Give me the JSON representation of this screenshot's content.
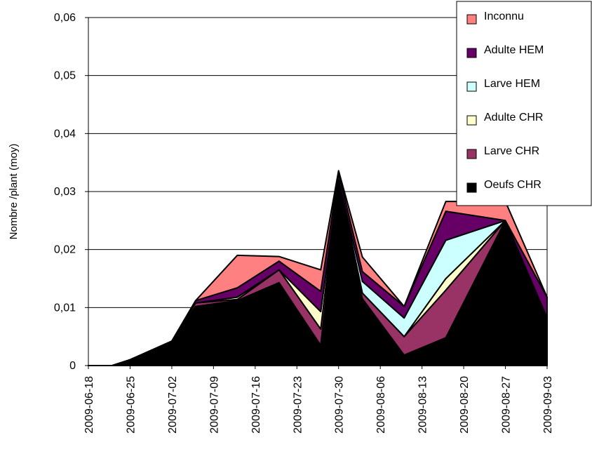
{
  "chart_data": {
    "type": "area",
    "stacked": true,
    "title": "",
    "ylabel": "Nombre /plant (moy)",
    "xlabel": "",
    "ylim": [
      0,
      0.06
    ],
    "yticks": [
      {
        "value": 0,
        "label": "0"
      },
      {
        "value": 0.01,
        "label": "0,01"
      },
      {
        "value": 0.02,
        "label": "0,02"
      },
      {
        "value": 0.03,
        "label": "0,03"
      },
      {
        "value": 0.04,
        "label": "0,04"
      },
      {
        "value": 0.05,
        "label": "0,05"
      },
      {
        "value": 0.06,
        "label": "0,06"
      }
    ],
    "x": [
      "2009-06-18",
      "2009-06-22",
      "2009-06-25",
      "2009-07-02",
      "2009-07-06",
      "2009-07-13",
      "2009-07-20",
      "2009-07-27",
      "2009-07-30",
      "2009-08-03",
      "2009-08-10",
      "2009-08-17",
      "2009-08-27",
      "2009-09-03"
    ],
    "xticks": [
      "2009-06-18",
      "2009-06-25",
      "2009-07-02",
      "2009-07-09",
      "2009-07-16",
      "2009-07-23",
      "2009-07-30",
      "2009-08-06",
      "2009-08-13",
      "2009-08-20",
      "2009-08-27",
      "2009-09-03"
    ],
    "grid": true,
    "legend_position": "top-right",
    "series": [
      {
        "name": "Oeufs CHR",
        "color": "#000000",
        "values": [
          0,
          0,
          0.001,
          0.0042,
          0.0102,
          0.0112,
          0.0143,
          0.0035,
          0.0312,
          0.0115,
          0.0018,
          0.0048,
          0.025,
          0.0082
        ]
      },
      {
        "name": "Larve CHR",
        "color": "#993366",
        "values": [
          0,
          0,
          0,
          0,
          0.0006,
          0.0002,
          0.0022,
          0.0028,
          0.0008,
          0.001,
          0.0032,
          0.0082,
          0,
          0
        ]
      },
      {
        "name": "Adulte CHR",
        "color": "#ffffcc",
        "values": [
          0,
          0,
          0,
          0,
          0,
          0.0004,
          0,
          0.003,
          0,
          0,
          0,
          0.002,
          0,
          0
        ]
      },
      {
        "name": "Larve HEM",
        "color": "#ccffff",
        "values": [
          0,
          0,
          0,
          0,
          0,
          0,
          0,
          0,
          0,
          0.002,
          0.0032,
          0.0066,
          0,
          0
        ]
      },
      {
        "name": "Adulte HEM",
        "color": "#660066",
        "values": [
          0,
          0,
          0,
          0,
          0.0004,
          0.0016,
          0.0015,
          0.0035,
          0.0012,
          0.0017,
          0.002,
          0.005,
          0,
          0.0036
        ]
      },
      {
        "name": "Inconnu",
        "color": "#ff8080",
        "values": [
          0,
          0,
          0,
          0,
          0,
          0.0056,
          0.0008,
          0.0037,
          0.0004,
          0.0025,
          0,
          0.0017,
          0.0033,
          0
        ]
      }
    ],
    "legend_order": [
      "Inconnu",
      "Adulte HEM",
      "Larve HEM",
      "Adulte CHR",
      "Larve CHR",
      "Oeufs CHR"
    ]
  }
}
